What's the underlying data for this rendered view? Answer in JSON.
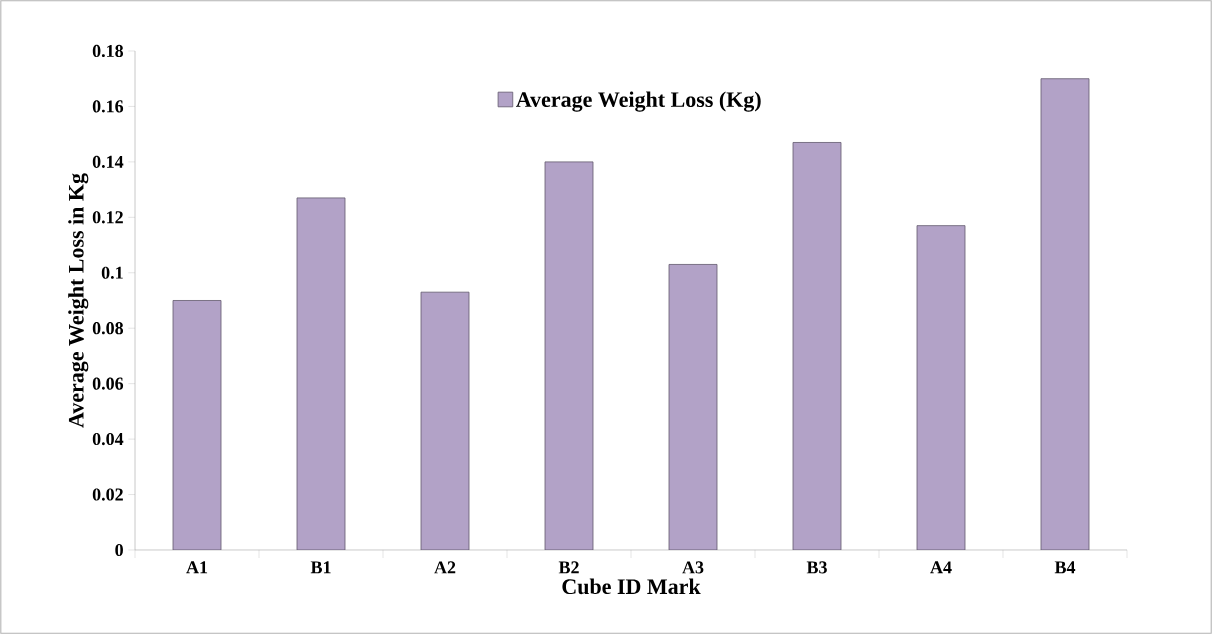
{
  "chart_data": {
    "type": "bar",
    "xlabel": "Cube ID Mark",
    "ylabel": "Average Weight Loss in Kg",
    "categories": [
      "A1",
      "B1",
      "A2",
      "B2",
      "A3",
      "B3",
      "A4",
      "B4"
    ],
    "series": [
      {
        "name": "Average Weight Loss (Kg)",
        "color": "#b2a2c7",
        "values": [
          0.09,
          0.127,
          0.093,
          0.14,
          0.103,
          0.147,
          0.117,
          0.17
        ]
      }
    ],
    "ylim": [
      0,
      0.18
    ],
    "yticks": [
      0,
      0.02,
      0.04,
      0.06,
      0.08,
      0.1,
      0.12,
      0.14,
      0.16,
      0.18
    ],
    "grid": false,
    "legend": "top"
  }
}
